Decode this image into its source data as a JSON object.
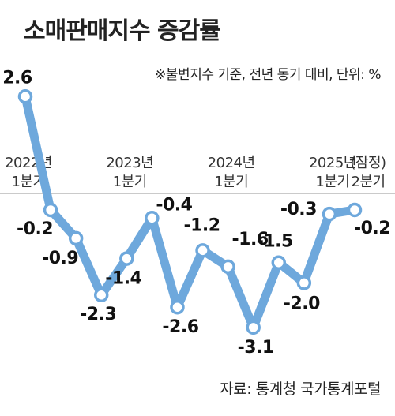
{
  "title": "소매판매지수 증감률",
  "note": "※불변지수 기준, 전년 동기 대비, 단위: %",
  "source": "자료: 통계청 국가통계포털",
  "colors": {
    "line": "#6ea8dc",
    "marker_fill": "#ffffff",
    "axis": "#b9b9b9",
    "text": "#222222"
  },
  "chart_data": {
    "type": "line",
    "title": "소매판매지수 증감률",
    "series": [
      {
        "values": [
          2.6,
          -0.2,
          -0.9,
          -2.3,
          -1.4,
          -0.4,
          -2.6,
          -1.2,
          -1.6,
          -3.1,
          -1.5,
          -2.0,
          -0.3,
          -0.2
        ]
      }
    ],
    "x": [
      "2022 1Q",
      "2022 2Q",
      "2022 3Q",
      "2022 4Q",
      "2023 1Q",
      "2023 2Q",
      "2023 3Q",
      "2023 4Q",
      "2024 1Q",
      "2024 2Q",
      "2024 3Q",
      "2024 4Q",
      "2025 1Q",
      "2025 2Q"
    ],
    "x_tick_labels": [
      {
        "index": 0,
        "line1": "2022년",
        "line2": "1분기"
      },
      {
        "index": 4,
        "line1": "2023년",
        "line2": "1분기"
      },
      {
        "index": 8,
        "line1": "2024년",
        "line2": "1분기"
      },
      {
        "index": 12,
        "line1": "2025년",
        "line2": "1분기"
      },
      {
        "index": 13,
        "line1": "(잠정)",
        "line2": "2분기"
      }
    ],
    "data_labels": [
      "2.6",
      "-0.2",
      "-0.9",
      "-2.3",
      "-1.4",
      "-0.4",
      "-2.6",
      "-1.2",
      "-1.6",
      "-3.1",
      "-1.5",
      "-2.0",
      "-0.3",
      "-0.2"
    ],
    "ylim": [
      -3.2,
      2.8
    ],
    "grid": false,
    "legend": "none"
  }
}
